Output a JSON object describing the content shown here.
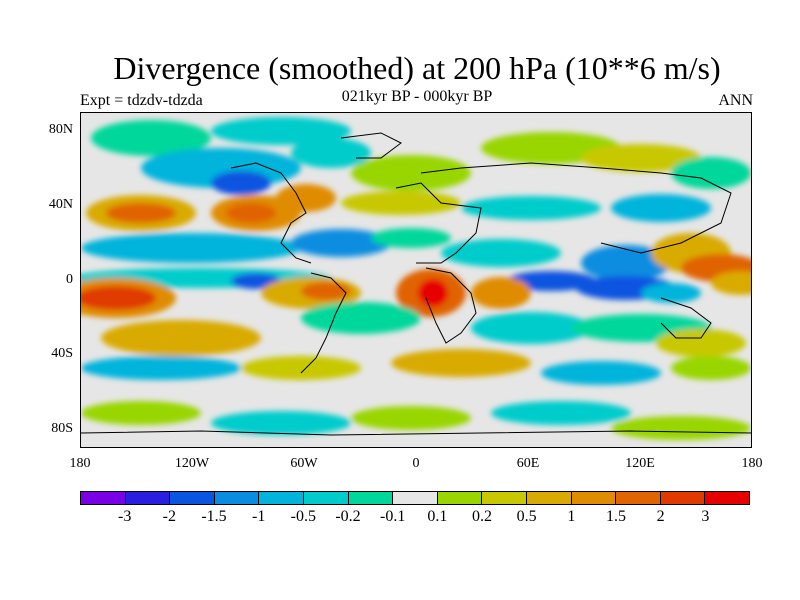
{
  "title": "Divergence (smoothed) at 200 hPa (10**6 m/s)",
  "experiment": "Expt = tdzdv-tdzda",
  "period": "021kyr BP - 000kyr BP",
  "season": "ANN",
  "lat_ticks": [
    "80N",
    "40N",
    "0",
    "40S",
    "80S"
  ],
  "lon_ticks": [
    "180",
    "120W",
    "60W",
    "0",
    "60E",
    "120E",
    "180"
  ],
  "colorbar": {
    "colors": [
      "#7a00e6",
      "#2a1fe0",
      "#0a55e0",
      "#0a8de0",
      "#00b4dc",
      "#00cccc",
      "#00d79b",
      "#e6e6e6",
      "#99d600",
      "#c8c800",
      "#d9aa00",
      "#e08c00",
      "#e06400",
      "#e03a00",
      "#e60000"
    ],
    "labels": [
      "-3",
      "-2",
      "-1.5",
      "-1",
      "-0.5",
      "-0.2",
      "-0.1",
      "0.1",
      "0.2",
      "0.5",
      "1",
      "1.5",
      "2",
      "3"
    ]
  }
}
